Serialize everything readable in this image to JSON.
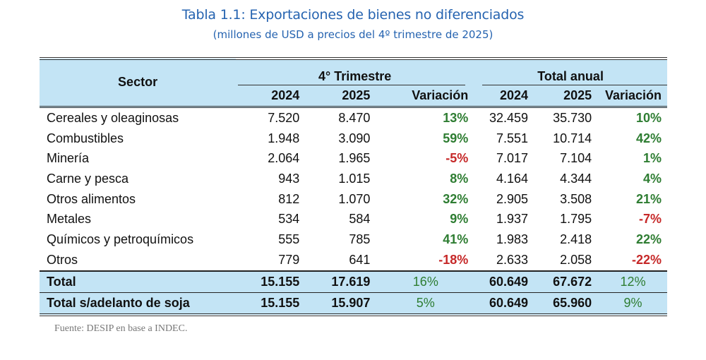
{
  "title": "Tabla 1.1: Exportaciones de bienes no diferenciados",
  "subtitle": "(millones de USD a precios del 4º trimestre de 2025)",
  "table": {
    "sector_header": "Sector",
    "groups": [
      {
        "label": "4° Trimestre",
        "cols": [
          "2024",
          "2025",
          "Variación"
        ]
      },
      {
        "label": "Total anual",
        "cols": [
          "2024",
          "2025",
          "Variación"
        ]
      }
    ],
    "rows": [
      {
        "sector": "Cereales y oleaginosas",
        "q_2024": "7.520",
        "q_2025": "8.470",
        "q_var": "13%",
        "q_sign": "pos",
        "a_2024": "32.459",
        "a_2025": "35.730",
        "a_var": "10%",
        "a_sign": "pos"
      },
      {
        "sector": "Combustibles",
        "q_2024": "1.948",
        "q_2025": "3.090",
        "q_var": "59%",
        "q_sign": "pos",
        "a_2024": "7.551",
        "a_2025": "10.714",
        "a_var": "42%",
        "a_sign": "pos"
      },
      {
        "sector": "Minería",
        "q_2024": "2.064",
        "q_2025": "1.965",
        "q_var": "-5%",
        "q_sign": "neg",
        "a_2024": "7.017",
        "a_2025": "7.104",
        "a_var": "1%",
        "a_sign": "pos"
      },
      {
        "sector": "Carne y pesca",
        "q_2024": "943",
        "q_2025": "1.015",
        "q_var": "8%",
        "q_sign": "pos",
        "a_2024": "4.164",
        "a_2025": "4.344",
        "a_var": "4%",
        "a_sign": "pos"
      },
      {
        "sector": "Otros alimentos",
        "q_2024": "812",
        "q_2025": "1.070",
        "q_var": "32%",
        "q_sign": "pos",
        "a_2024": "2.905",
        "a_2025": "3.508",
        "a_var": "21%",
        "a_sign": "pos"
      },
      {
        "sector": "Metales",
        "q_2024": "534",
        "q_2025": "584",
        "q_var": "9%",
        "q_sign": "pos",
        "a_2024": "1.937",
        "a_2025": "1.795",
        "a_var": "-7%",
        "a_sign": "neg"
      },
      {
        "sector": "Químicos y petroquímicos",
        "q_2024": "555",
        "q_2025": "785",
        "q_var": "41%",
        "q_sign": "pos",
        "a_2024": "1.983",
        "a_2025": "2.418",
        "a_var": "22%",
        "a_sign": "pos"
      },
      {
        "sector": "Otros",
        "q_2024": "779",
        "q_2025": "641",
        "q_var": "-18%",
        "q_sign": "neg",
        "a_2024": "2.633",
        "a_2025": "2.058",
        "a_var": "-22%",
        "a_sign": "neg"
      }
    ],
    "totals": [
      {
        "sector": "Total",
        "q_2024": "15.155",
        "q_2025": "17.619",
        "q_var": "16%",
        "q_sign": "pos",
        "a_2024": "60.649",
        "a_2025": "67.672",
        "a_var": "12%",
        "a_sign": "pos"
      },
      {
        "sector": "Total s/adelanto de soja",
        "q_2024": "15.155",
        "q_2025": "15.907",
        "q_var": "5%",
        "q_sign": "pos",
        "a_2024": "60.649",
        "a_2025": "65.960",
        "a_var": "9%",
        "a_sign": "pos"
      }
    ]
  },
  "colors": {
    "header_bg": "#c3e4f5",
    "title": "#2563b0",
    "positive": "#2e7d32",
    "negative": "#c62828"
  },
  "source": "Fuente: DESIP en base a INDEC."
}
